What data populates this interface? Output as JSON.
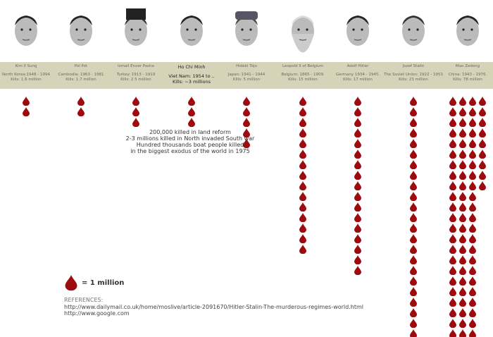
{
  "chart_data": {
    "type": "pictogram",
    "unit_label": "= 1 million",
    "categories": [
      "Kim Il Sung",
      "Pol Pot",
      "Ismail Enver Pasha",
      "Ho Chi Minh",
      "Hideki Tojo",
      "Leopold II of Belgium",
      "Adolf Hitler",
      "Jozef Stalin",
      "Mao Zedong"
    ],
    "values": [
      1.6,
      1.7,
      2.5,
      3,
      5,
      15,
      17,
      23,
      78
    ],
    "drop_color": "#9e0b0f",
    "band_color": "#d6d3b9"
  },
  "leaders": [
    {
      "name": "Kim Il Sung",
      "line1": "North Korea:1948 - 1994",
      "line2": "Kills: 1.6 million"
    },
    {
      "name": "Pol Pot",
      "line1": "Cambodia: 1963 - 1981",
      "line2": "Kills: 1.7 million"
    },
    {
      "name": "Ismail Enver Pasha",
      "line1": "Turkey: 1913 - 1919",
      "line2": "Kills: 2.5 million"
    },
    {
      "name": "Ho Chi Minh",
      "line1": "Viet Nam: 1954 to ..",
      "line2": "Kills: ~3 millions"
    },
    {
      "name": "Hideki Tojo",
      "line1": "Japan: 1941 - 1944",
      "line2": "Kills: 5 million"
    },
    {
      "name": "Leopold II of Belgium",
      "line1": "Belgium: 1865 - 1909.",
      "line2": "Kills: 15 million"
    },
    {
      "name": "Adolf Hitler",
      "line1": "Germany 1934 - 1945.",
      "line2": "Kills: 17 million"
    },
    {
      "name": "Jozef Stalin",
      "line1": "The Soviet Union: 1922 - 1953",
      "line2": "Kills: 23 million"
    },
    {
      "name": "Mao Zedong",
      "line1": "China: 1943 - 1976.",
      "line2": "Kills: 78 million"
    }
  ],
  "note": [
    "200,000 killed in land reform",
    "2-3 millions killed in North invaded South war",
    "Hundred thousands boat people killed",
    "in the biggest exodus of the world in 1975"
  ],
  "legend": {
    "label": "= 1 million"
  },
  "references": {
    "heading": "REFERENCES:",
    "links": [
      "http://www.dailymail.co.uk/home/moslive/article-2091670/Hitler-Stalin-The-murderous-regimes-world.html",
      "http://www.google.com"
    ]
  }
}
